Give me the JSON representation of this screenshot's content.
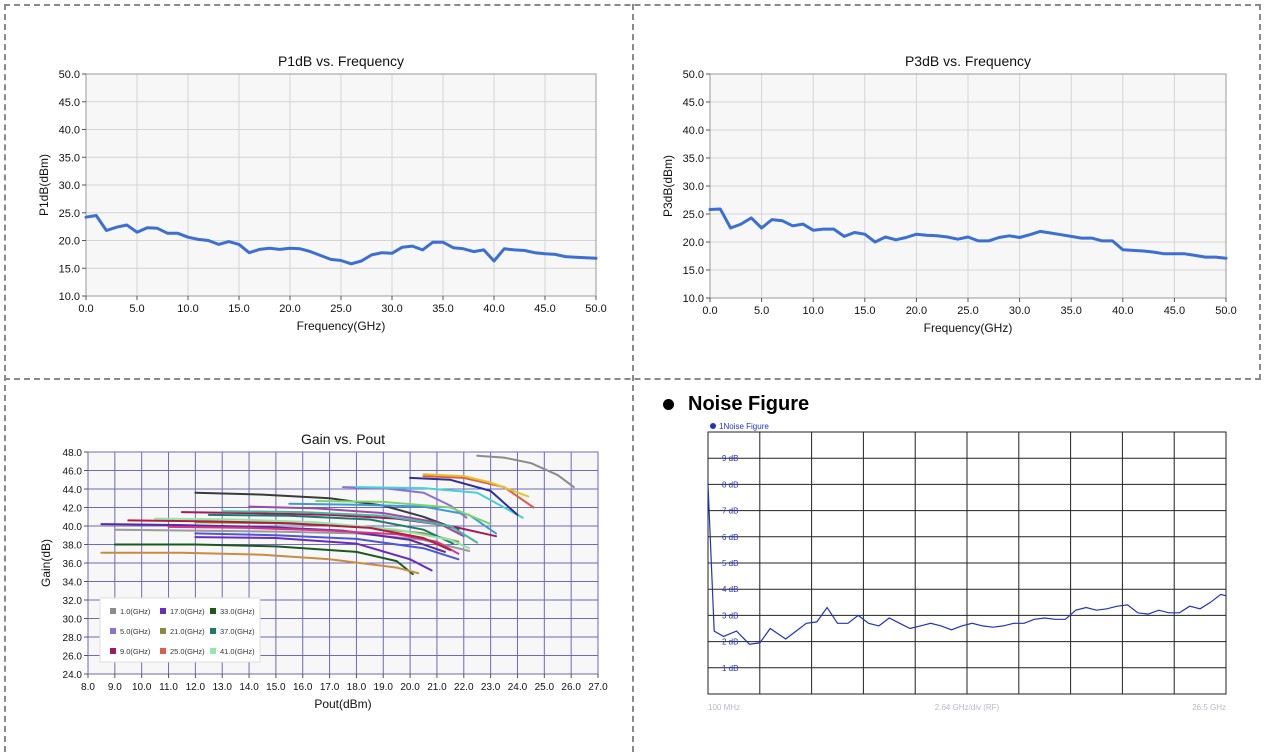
{
  "section_heading": "Noise Figure",
  "chart_data": [
    {
      "id": "p1db",
      "type": "line",
      "title": "P1dB vs. Frequency",
      "xlabel": "Frequency(GHz)",
      "ylabel": "P1dB(dBm)",
      "xlim": [
        0,
        50
      ],
      "ylim": [
        10,
        50
      ],
      "xticks": [
        0,
        5,
        10,
        15,
        20,
        25,
        30,
        35,
        40,
        45,
        50
      ],
      "yticks": [
        10,
        15,
        20,
        25,
        30,
        35,
        40,
        45,
        50
      ],
      "grid": true,
      "series": [
        {
          "color": "#3b6fd4",
          "x": [
            0,
            1,
            2,
            3,
            4,
            5,
            6,
            7,
            8,
            9,
            10,
            11,
            12,
            13,
            14,
            15,
            16,
            17,
            18,
            19,
            20,
            21,
            22,
            23,
            24,
            25,
            26,
            27,
            28,
            29,
            30,
            31,
            32,
            33,
            34,
            35,
            36,
            37,
            38,
            39,
            40,
            41,
            42,
            43,
            44,
            45,
            46,
            47,
            48,
            49,
            50
          ],
          "y": [
            24.2,
            24.5,
            21.8,
            22.4,
            22.8,
            21.5,
            22.3,
            22.2,
            21.3,
            21.3,
            20.6,
            20.2,
            20.0,
            19.3,
            19.8,
            19.3,
            17.8,
            18.4,
            18.6,
            18.4,
            18.6,
            18.5,
            18.0,
            17.3,
            16.6,
            16.4,
            15.8,
            16.3,
            17.4,
            17.8,
            17.7,
            18.8,
            19.0,
            18.3,
            19.7,
            19.7,
            18.7,
            18.5,
            18.0,
            18.3,
            16.3,
            18.5,
            18.3,
            18.2,
            17.8,
            17.6,
            17.5,
            17.1,
            17.0,
            16.9,
            16.8
          ]
        }
      ]
    },
    {
      "id": "p3db",
      "type": "line",
      "title": "P3dB vs. Frequency",
      "xlabel": "Frequency(GHz)",
      "ylabel": "P3dB(dBm)",
      "xlim": [
        0,
        50
      ],
      "ylim": [
        10,
        50
      ],
      "xticks": [
        0,
        5,
        10,
        15,
        20,
        25,
        30,
        35,
        40,
        45,
        50
      ],
      "yticks": [
        10,
        15,
        20,
        25,
        30,
        35,
        40,
        45,
        50
      ],
      "grid": true,
      "series": [
        {
          "color": "#3b6fd4",
          "x": [
            0,
            1,
            2,
            3,
            4,
            5,
            6,
            7,
            8,
            9,
            10,
            11,
            12,
            13,
            14,
            15,
            16,
            17,
            18,
            19,
            20,
            21,
            22,
            23,
            24,
            25,
            26,
            27,
            28,
            29,
            30,
            31,
            32,
            33,
            34,
            35,
            36,
            37,
            38,
            39,
            40,
            41,
            42,
            43,
            44,
            45,
            46,
            47,
            48,
            49,
            50
          ],
          "y": [
            25.8,
            25.9,
            22.5,
            23.2,
            24.3,
            22.5,
            24.0,
            23.8,
            22.9,
            23.2,
            22.1,
            22.3,
            22.3,
            21.0,
            21.7,
            21.4,
            20.0,
            20.9,
            20.4,
            20.8,
            21.4,
            21.2,
            21.1,
            20.9,
            20.5,
            20.9,
            20.2,
            20.2,
            20.8,
            21.1,
            20.8,
            21.3,
            21.9,
            21.6,
            21.3,
            21.0,
            20.7,
            20.7,
            20.2,
            20.2,
            18.6,
            18.5,
            18.4,
            18.2,
            17.9,
            17.9,
            17.9,
            17.6,
            17.3,
            17.3,
            17.1
          ]
        }
      ]
    },
    {
      "id": "gain",
      "type": "line",
      "title": "Gain vs. Pout",
      "xlabel": "Pout(dBm)",
      "ylabel": "Gain(dB)",
      "xlim": [
        8,
        27
      ],
      "ylim": [
        24,
        48
      ],
      "xticks": [
        8,
        9,
        10,
        11,
        12,
        13,
        14,
        15,
        16,
        17,
        18,
        19,
        20,
        21,
        22,
        23,
        24,
        25,
        26,
        27
      ],
      "yticks": [
        24,
        26,
        28,
        30,
        32,
        34,
        36,
        38,
        40,
        42,
        44,
        46,
        48
      ],
      "legend": "lower-left",
      "grid": true,
      "series": [
        {
          "name": "1.0(GHz)",
          "color": "#8c8c8c",
          "x": [
            22.5,
            23.5,
            24.5,
            25.5,
            26.1
          ],
          "y": [
            47.6,
            47.4,
            46.8,
            45.5,
            44.2
          ]
        },
        {
          "name": "5.0(GHz)",
          "color": "#8c72d8",
          "x": [
            17.5,
            19.0,
            20.5,
            21.5,
            22.1
          ],
          "y": [
            44.2,
            44.1,
            43.6,
            42.2,
            40.9
          ]
        },
        {
          "name": "9.0(GHz)",
          "color": "#a3195b",
          "x": [
            11.5,
            14.0,
            17.0,
            19.5,
            21.5,
            23.2
          ],
          "y": [
            41.5,
            41.4,
            41.2,
            40.8,
            40.0,
            38.9
          ]
        },
        {
          "name": "17.0(GHz)",
          "color": "#6a2bc0",
          "x": [
            12.0,
            15.0,
            18.0,
            20.0,
            20.8
          ],
          "y": [
            38.8,
            38.7,
            38.1,
            36.4,
            35.2
          ]
        },
        {
          "name": "21.0(GHz)",
          "color": "#8c8a3a",
          "x": [
            12.0,
            15.0,
            18.0,
            20.5,
            21.8
          ],
          "y": [
            40.4,
            40.3,
            40.0,
            39.2,
            38.3
          ]
        },
        {
          "name": "25.0(GHz)",
          "color": "#e05c4a",
          "x": [
            20.5,
            22.0,
            23.5,
            24.6
          ],
          "y": [
            45.4,
            45.2,
            44.2,
            42.0
          ]
        },
        {
          "name": "33.0(GHz)",
          "color": "#1b5a1b",
          "x": [
            9.0,
            12.0,
            15.0,
            18.0,
            19.5,
            20.1
          ],
          "y": [
            38.0,
            38.0,
            37.8,
            37.2,
            36.2,
            34.8
          ]
        },
        {
          "name": "37.0(GHz)",
          "color": "#1f7a6a",
          "x": [
            12.5,
            15.5,
            18.5,
            20.5,
            21.6
          ],
          "y": [
            41.2,
            41.1,
            40.7,
            39.6,
            38.1
          ]
        },
        {
          "name": "41.0(GHz)",
          "color": "#8fe6a8",
          "x": [
            10.5,
            13.5,
            16.5,
            19.5,
            21.5,
            22.2
          ],
          "y": [
            40.8,
            40.7,
            40.4,
            39.6,
            38.5,
            37.6
          ]
        },
        {
          "color": "#c98c3e",
          "x": [
            8.5,
            11.5,
            14.5,
            17.0,
            19.5,
            20.3
          ],
          "y": [
            37.1,
            37.1,
            36.9,
            36.4,
            35.5,
            34.9
          ]
        },
        {
          "color": "#3b3b3b",
          "x": [
            12.0,
            14.5,
            17.0,
            19.0,
            20.5,
            21.8
          ],
          "y": [
            43.6,
            43.4,
            43.0,
            42.2,
            41.0,
            39.6
          ]
        },
        {
          "color": "#3a9ad9",
          "x": [
            15.5,
            18.0,
            20.5,
            22.2,
            23.2
          ],
          "y": [
            42.4,
            42.3,
            42.1,
            41.2,
            39.2
          ]
        },
        {
          "color": "#46d0d8",
          "x": [
            18.0,
            20.5,
            22.5,
            24.2
          ],
          "y": [
            44.2,
            44.1,
            43.6,
            40.9
          ]
        },
        {
          "color": "#2a2f9a",
          "x": [
            20.0,
            21.5,
            23.0,
            24.0
          ],
          "y": [
            45.2,
            45.0,
            43.8,
            41.2
          ]
        },
        {
          "color": "#e3c22e",
          "x": [
            20.5,
            22.0,
            23.0,
            24.4
          ],
          "y": [
            45.6,
            45.4,
            44.7,
            43.2
          ]
        },
        {
          "color": "#9a9a9a",
          "x": [
            9.0,
            12.0,
            15.0,
            18.0,
            20.5,
            22.2
          ],
          "y": [
            39.6,
            39.5,
            39.4,
            39.2,
            38.5,
            37.3
          ]
        },
        {
          "color": "#5a2aa0",
          "x": [
            8.5,
            11.5,
            14.5,
            17.5,
            20.0,
            21.3
          ],
          "y": [
            40.2,
            40.1,
            39.9,
            39.5,
            38.5,
            37.2
          ]
        },
        {
          "color": "#d7358c",
          "x": [
            11.0,
            14.0,
            17.0,
            19.5,
            21.0,
            21.8
          ],
          "y": [
            39.9,
            39.8,
            39.5,
            39.1,
            38.3,
            37.0
          ]
        },
        {
          "color": "#7fd36a",
          "x": [
            16.5,
            19.0,
            21.5,
            23.0
          ],
          "y": [
            42.7,
            42.6,
            42.0,
            40.2
          ]
        },
        {
          "color": "#9a4aaa",
          "x": [
            14.0,
            16.5,
            19.0,
            21.0,
            22.0
          ],
          "y": [
            42.1,
            41.9,
            41.4,
            40.4,
            38.9
          ]
        },
        {
          "color": "#4b57d8",
          "x": [
            12.0,
            15.0,
            18.0,
            20.5,
            21.8
          ],
          "y": [
            39.2,
            39.0,
            38.6,
            37.6,
            36.4
          ]
        },
        {
          "color": "#b01d3c",
          "x": [
            9.5,
            12.5,
            15.5,
            18.5,
            20.5,
            21.5
          ],
          "y": [
            40.6,
            40.5,
            40.3,
            39.8,
            38.7,
            37.4
          ]
        },
        {
          "color": "#48b89a",
          "x": [
            13.0,
            16.0,
            19.0,
            21.5,
            22.5
          ],
          "y": [
            41.6,
            41.5,
            41.1,
            40.0,
            38.2
          ]
        }
      ]
    },
    {
      "id": "nf",
      "type": "line",
      "title": "",
      "legend_label": "1Noise Figure",
      "xlim": [
        0,
        10
      ],
      "ylim": [
        0,
        10
      ],
      "ytick_labels": [
        "1 dB",
        "2 dB",
        "3 dB",
        "4 dB",
        "5 dB",
        "6 dB",
        "7 dB",
        "8 dB",
        "9 dB"
      ],
      "xlabel_left": "100 MHz",
      "xlabel_center": "2.64 GHz/div (RF)",
      "xlabel_right": "26.5 GHz",
      "grid": true,
      "series": [
        {
          "name": "1Noise Figure",
          "color": "#2233bb",
          "x": [
            0.0,
            0.12,
            0.3,
            0.55,
            0.8,
            1.0,
            1.2,
            1.5,
            1.7,
            1.9,
            2.1,
            2.3,
            2.5,
            2.7,
            2.9,
            3.1,
            3.3,
            3.5,
            3.7,
            3.9,
            4.1,
            4.3,
            4.5,
            4.7,
            4.9,
            5.1,
            5.3,
            5.5,
            5.7,
            5.9,
            6.1,
            6.3,
            6.5,
            6.7,
            6.9,
            7.1,
            7.3,
            7.5,
            7.7,
            7.9,
            8.1,
            8.3,
            8.5,
            8.7,
            8.9,
            9.1,
            9.3,
            9.5,
            9.7,
            9.9,
            10.0
          ],
          "y": [
            8.0,
            2.4,
            2.2,
            2.4,
            1.9,
            1.95,
            2.5,
            2.1,
            2.4,
            2.7,
            2.75,
            3.3,
            2.7,
            2.7,
            3.0,
            2.7,
            2.6,
            2.9,
            2.7,
            2.5,
            2.6,
            2.7,
            2.6,
            2.45,
            2.6,
            2.7,
            2.6,
            2.55,
            2.6,
            2.7,
            2.7,
            2.85,
            2.9,
            2.85,
            2.85,
            3.2,
            3.3,
            3.2,
            3.25,
            3.35,
            3.4,
            3.1,
            3.05,
            3.2,
            3.1,
            3.1,
            3.35,
            3.25,
            3.5,
            3.8,
            3.75
          ]
        }
      ]
    }
  ]
}
